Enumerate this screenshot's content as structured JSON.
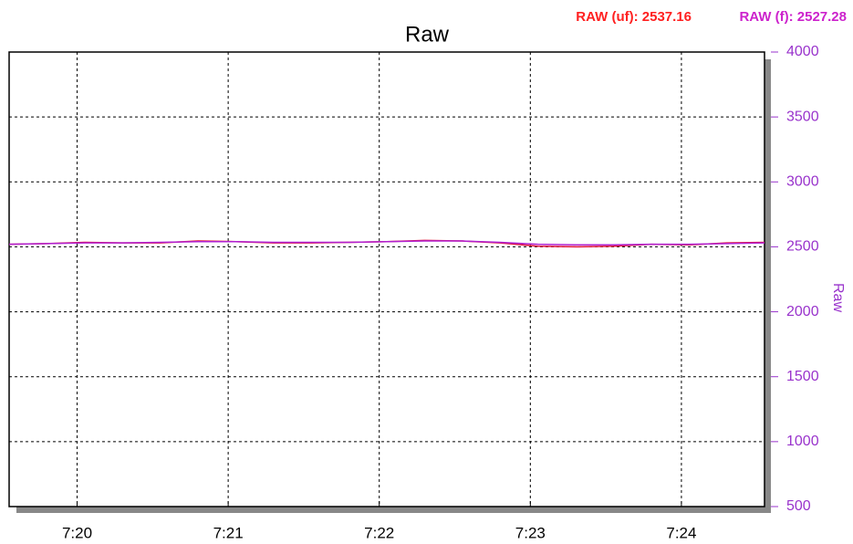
{
  "chart_data": {
    "type": "line",
    "title": "Raw",
    "y_label": "Raw",
    "readouts": [
      {
        "text": "RAW (uf): 2537.16",
        "color": "#ff2020"
      },
      {
        "text": "RAW (f): 2527.28",
        "color": "#cc22cc"
      }
    ],
    "x": [
      439.55,
      439.8,
      440.05,
      440.3,
      440.55,
      440.8,
      441.05,
      441.3,
      441.55,
      441.8,
      442.05,
      442.3,
      442.55,
      442.8,
      443.05,
      443.3,
      443.55,
      443.8,
      444.05,
      444.3,
      444.55
    ],
    "series": [
      {
        "color": "#e0103a",
        "values": [
          2520,
          2525,
          2535,
          2530,
          2530,
          2545,
          2540,
          2530,
          2530,
          2535,
          2540,
          2550,
          2545,
          2530,
          2505,
          2500,
          2505,
          2520,
          2515,
          2530,
          2535
        ]
      },
      {
        "color": "#b020d0",
        "values": [
          2520,
          2525,
          2530,
          2530,
          2535,
          2540,
          2540,
          2535,
          2535,
          2535,
          2540,
          2545,
          2545,
          2535,
          2520,
          2515,
          2515,
          2520,
          2520,
          2525,
          2530
        ]
      }
    ],
    "xlim": [
      439.55,
      444.55
    ],
    "xticks": [
      {
        "value": 440,
        "label": "7:20"
      },
      {
        "value": 441,
        "label": "7:21"
      },
      {
        "value": 442,
        "label": "7:22"
      },
      {
        "value": 443,
        "label": "7:23"
      },
      {
        "value": 444,
        "label": "7:24"
      }
    ],
    "ylim": [
      500,
      4000
    ],
    "yticks": [
      500,
      1000,
      1500,
      2000,
      2500,
      3000,
      3500,
      4000
    ],
    "grid": true,
    "axis_color": "#9933cc"
  }
}
